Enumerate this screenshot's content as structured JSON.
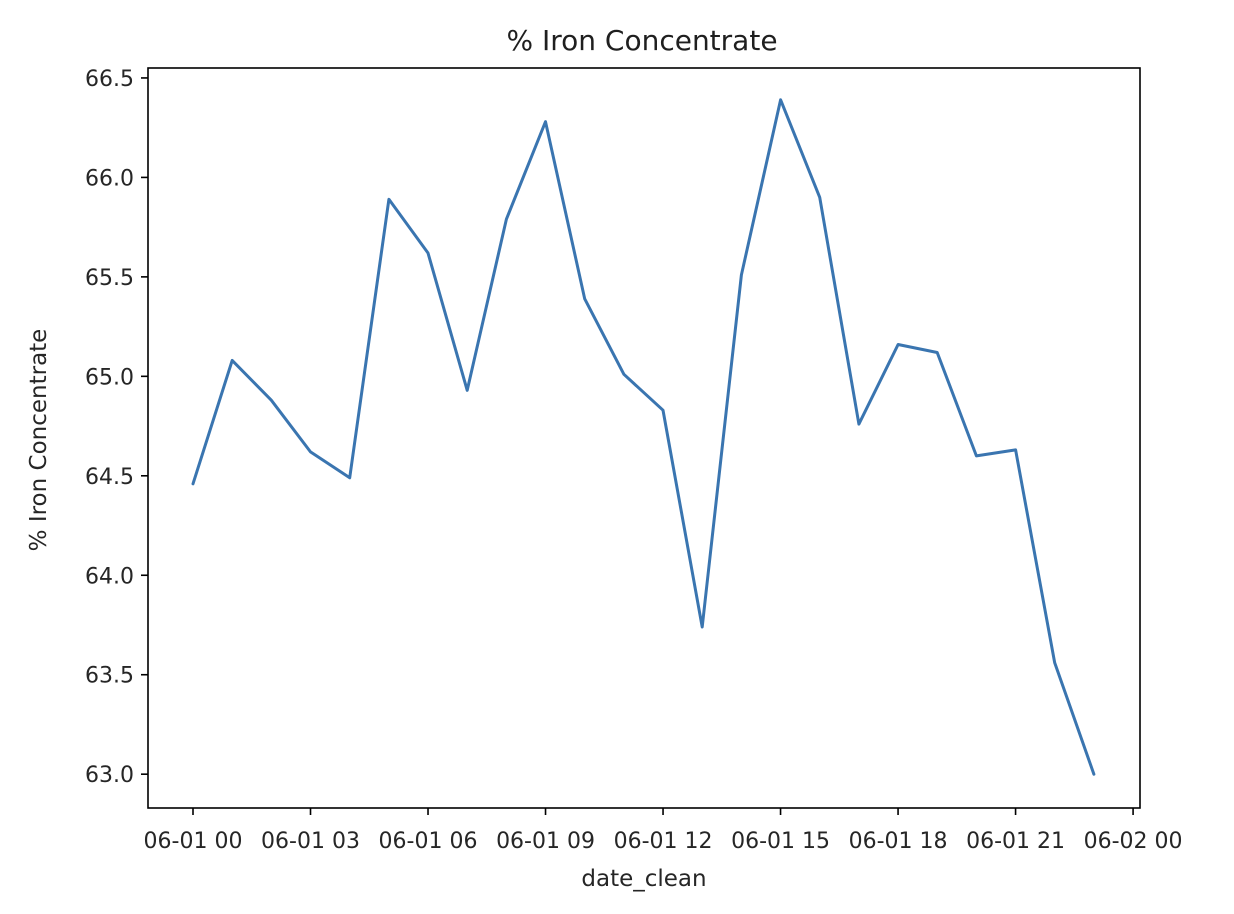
{
  "chart_data": {
    "type": "line",
    "title": "% Iron Concentrate",
    "xlabel": "date_clean",
    "ylabel": "% Iron Concentrate",
    "x_tick_labels": [
      "06-01 00",
      "06-01 03",
      "06-01 06",
      "06-01 09",
      "06-01 12",
      "06-01 15",
      "06-01 18",
      "06-01 21",
      "06-02 00"
    ],
    "y_tick_labels": [
      "63.0",
      "63.5",
      "64.0",
      "64.5",
      "65.0",
      "65.5",
      "66.0",
      "66.5"
    ],
    "xlim": [
      "2017-06-01 00:00",
      "2017-06-02 00:00"
    ],
    "ylim": [
      62.83,
      66.55
    ],
    "grid": false,
    "series": [
      {
        "color": "#3a75b0",
        "x": [
          "06-01 00",
          "06-01 01",
          "06-01 02",
          "06-01 03",
          "06-01 04",
          "06-01 05",
          "06-01 06",
          "06-01 07",
          "06-01 08",
          "06-01 09",
          "06-01 10",
          "06-01 11",
          "06-01 12",
          "06-01 13",
          "06-01 14",
          "06-01 15",
          "06-01 16",
          "06-01 17",
          "06-01 18",
          "06-01 19",
          "06-01 20",
          "06-01 21",
          "06-01 22",
          "06-01 23"
        ],
        "values": [
          64.46,
          65.08,
          64.88,
          64.62,
          64.49,
          65.89,
          65.62,
          64.93,
          65.79,
          66.28,
          65.39,
          65.01,
          64.83,
          63.74,
          65.51,
          66.39,
          65.9,
          64.76,
          65.16,
          65.12,
          64.6,
          64.63,
          63.56,
          63.0
        ]
      }
    ]
  }
}
